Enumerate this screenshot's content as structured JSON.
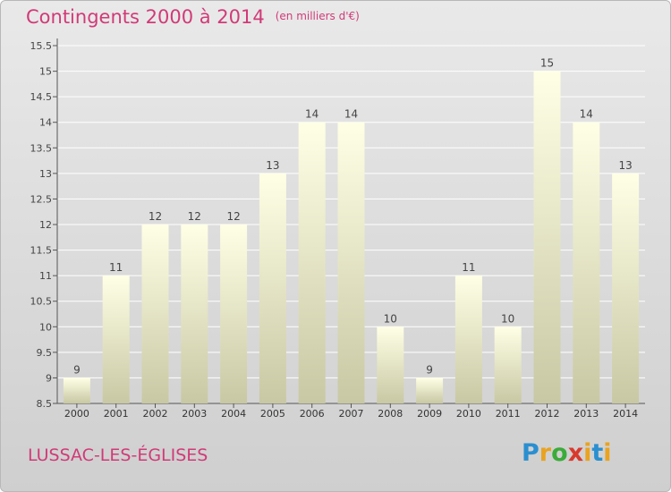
{
  "header": {
    "title": "Contingents 2000 à 2014",
    "unit": "(en milliers d'€)"
  },
  "footer": {
    "commune": "LUSSAC-LES-ÉGLISES",
    "logo_letters": [
      "P",
      "r",
      "o",
      "x",
      "i",
      "t",
      "i"
    ],
    "logo_colors": [
      "#2a8fd0",
      "#e9a31f",
      "#3bab3a",
      "#d83a2e",
      "#e9a31f",
      "#2a8fd0",
      "#e9a31f"
    ]
  },
  "colors": {
    "title": "#d13a77",
    "bar_top": "#ffffe6",
    "bar_bottom": "#c8c8a4",
    "grid": "#ffffff"
  },
  "chart_data": {
    "type": "bar",
    "categories": [
      "2000",
      "2001",
      "2002",
      "2003",
      "2004",
      "2005",
      "2006",
      "2007",
      "2008",
      "2009",
      "2010",
      "2011",
      "2012",
      "2013",
      "2014"
    ],
    "values": [
      9,
      11,
      12,
      12,
      12,
      13,
      14,
      14,
      10,
      9,
      11,
      10,
      15,
      14,
      13
    ],
    "value_labels": [
      "9",
      "11",
      "12",
      "12",
      "12",
      "13",
      "14",
      "14",
      "10",
      "9",
      "11",
      "10",
      "15",
      "14",
      "13"
    ],
    "ylim": [
      8.5,
      15.5
    ],
    "yticks": [
      8.5,
      9,
      9.5,
      10,
      10.5,
      11,
      11.5,
      12,
      12.5,
      13,
      13.5,
      14,
      14.5,
      15,
      15.5
    ],
    "ytick_labels": [
      "8.5",
      "9",
      "9.5",
      "10",
      "10.5",
      "11",
      "11.5",
      "12",
      "12.5",
      "13",
      "13.5",
      "14",
      "14.5",
      "15",
      "15.5"
    ],
    "grid": true,
    "xlabel": "",
    "ylabel": ""
  }
}
